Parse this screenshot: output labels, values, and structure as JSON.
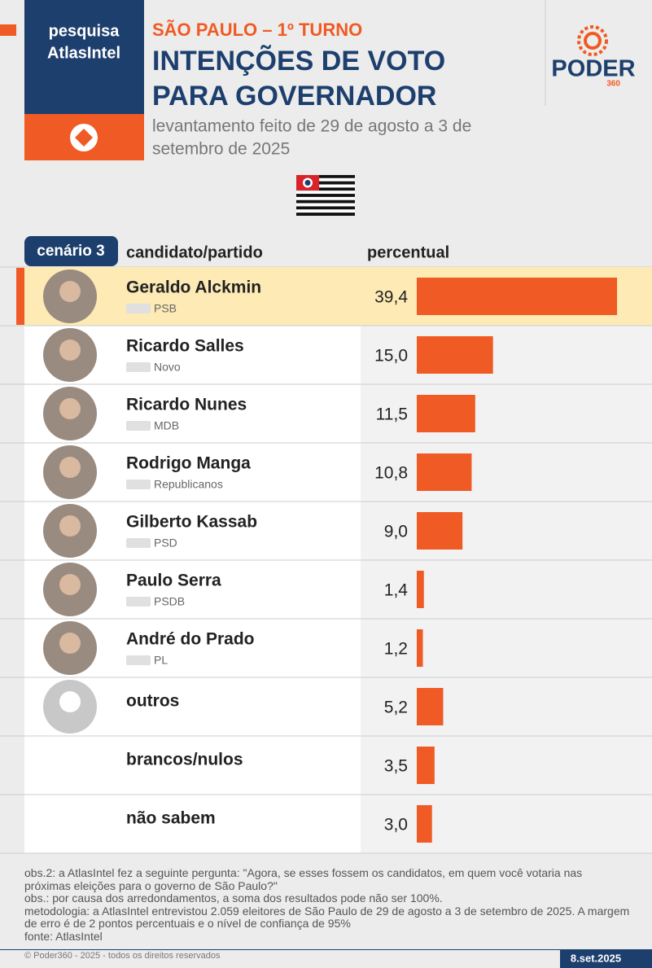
{
  "chart_data": {
    "type": "bar",
    "source_badge": [
      "pesquisa",
      "AtlasIntel"
    ],
    "kicker": "SÃO PAULO – 1º TURNO",
    "title": [
      "INTENÇÕES DE VOTO",
      "PARA GOVERNADOR"
    ],
    "subtitle": [
      "levantamento feito de 29 de agosto a 3 de",
      "setembro de 2025"
    ],
    "logo": "PODER",
    "logo_sub": "360",
    "scenario": "cenário 3",
    "column_labels": [
      "candidato/partido",
      "percentual"
    ],
    "categories": [
      "Geraldo Alckmin",
      "Ricardo Salles",
      "Ricardo Nunes",
      "Rodrigo Manga",
      "Gilberto Kassab",
      "Paulo Serra",
      "André do Prado",
      "outros",
      "brancos/nulos",
      "não sabem"
    ],
    "parties": [
      "PSB",
      "Novo",
      "MDB",
      "Republicanos",
      "PSD",
      "PSDB",
      "PL",
      null,
      null,
      null
    ],
    "values": [
      39.4,
      15.0,
      11.5,
      10.8,
      9.0,
      1.4,
      1.2,
      5.2,
      3.5,
      3.0
    ],
    "value_labels": [
      "39,4",
      "15,0",
      "11,5",
      "10,8",
      "9,0",
      "1,4",
      "1,2",
      "5,2",
      "3,5",
      "3,0"
    ],
    "color": "#f05a24",
    "highlight": 0,
    "xlim": [
      0,
      45
    ],
    "notes": [
      "obs.2: a AtlasIntel fez a seguinte pergunta: \"Agora, se esses fossem os candidatos, em quem você votaria nas próximas eleições para o governo de São Paulo?\"",
      "obs.: por causa dos arredondamentos, a soma dos resultados pode não ser 100%.",
      "metodologia: a AtlasIntel entrevistou 2.059 eleitores de São Paulo de 29 de agosto a 3 de setembro de 2025. A margem de erro é de 2 pontos percentuais e o nível de confiança de 95%",
      "fonte: AtlasIntel"
    ],
    "copyright": "© Poder360 - 2025 - todos os direitos reservados",
    "date": "8.set.2025"
  }
}
